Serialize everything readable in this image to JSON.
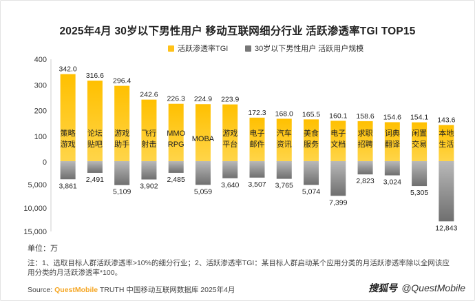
{
  "title": "2025年4月 30岁以下男性用户 移动互联网细分行业 活跃渗透率TGI TOP15",
  "legend": [
    {
      "name": "活跃渗透率TGI",
      "color": "#ffc21a"
    },
    {
      "name": "30岁以下男性用户 活跃用户规模",
      "color": "#777777"
    }
  ],
  "unit_label": "单位：万",
  "note": "注：1、选取目标人群活跃渗透率>10%的细分行业；2、活跃渗透率TGI：某目标人群启动某个应用分类的月活跃渗透率除以全网该应用分类的月活跃渗透率*100。",
  "source": {
    "prefix": "Source: ",
    "brand": "QuestMobile",
    "rest": " TRUTH 中国移动互联网数据库 2025年4月"
  },
  "watermark": {
    "logo": "搜狐号",
    "handle": "@QuestMobile"
  },
  "chart_data": {
    "type": "bar",
    "categories": [
      "策略\n游戏",
      "论坛\n贴吧",
      "游戏\n助手",
      "飞行\n射击",
      "MMO\nRPG",
      "MOBA",
      "游戏\n平台",
      "电子\n邮件",
      "汽车\n资讯",
      "美食\n服务",
      "电子\n文档",
      "求职\n招聘",
      "词典\n翻译",
      "闲置\n交易",
      "本地\n生活"
    ],
    "series": [
      {
        "name": "活跃渗透率TGI",
        "color": "#ffc21a",
        "values": [
          342.0,
          316.6,
          296.4,
          242.6,
          226.3,
          224.9,
          223.9,
          172.3,
          168.0,
          165.5,
          160.1,
          158.6,
          154.6,
          154.1,
          143.6
        ],
        "labels": [
          "342.0",
          "316.6",
          "296.4",
          "242.6",
          "226.3",
          "224.9",
          "223.9",
          "172.3",
          "168.0",
          "165.5",
          "160.1",
          "158.6",
          "154.6",
          "154.1",
          "143.6"
        ]
      },
      {
        "name": "30岁以下男性用户 活跃用户规模",
        "color": "#777777",
        "values": [
          3861,
          2491,
          5109,
          3902,
          2485,
          5059,
          3640,
          3507,
          3765,
          5074,
          7399,
          2823,
          3024,
          5305,
          12843
        ],
        "labels": [
          "3,861",
          "2,491",
          "5,109",
          "3,902",
          "2,485",
          "5,059",
          "3,640",
          "3,507",
          "3,765",
          "5,074",
          "7,399",
          "2,823",
          "3,024",
          "5,305",
          "12,843"
        ]
      }
    ],
    "y_top": {
      "ticks": [
        "0",
        "100",
        "200",
        "300",
        "400"
      ],
      "range": [
        0,
        400
      ]
    },
    "y_bottom": {
      "ticks": [
        "0",
        "5,000",
        "10,000",
        "15,000"
      ],
      "range": [
        0,
        15000
      ]
    },
    "legend_position": "top-center",
    "grid": false
  }
}
